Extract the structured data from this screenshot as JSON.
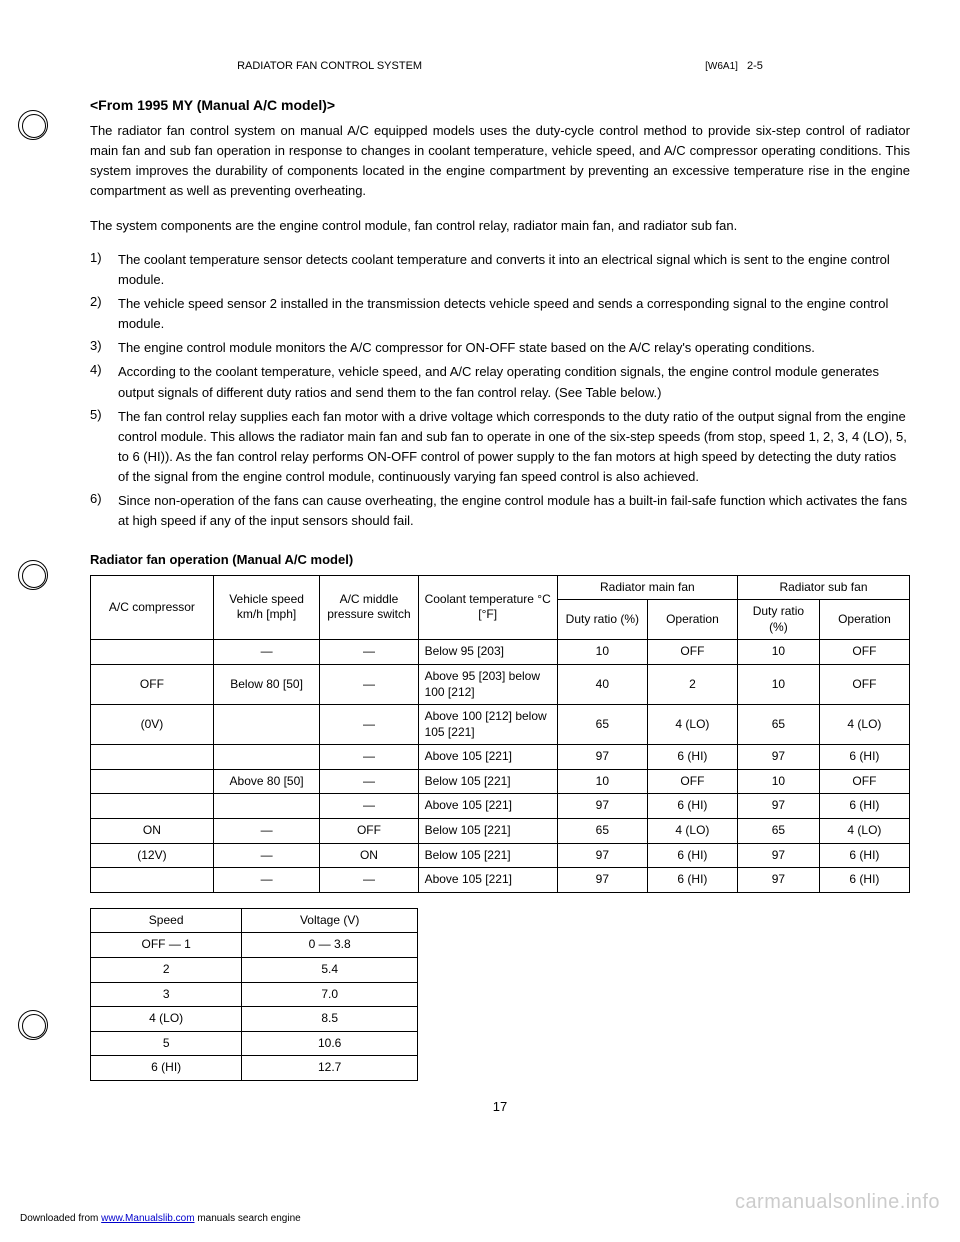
{
  "header": {
    "title": "RADIATOR FAN CONTROL SYSTEM",
    "ref": "[W6A1]",
    "code": "2-5"
  },
  "section": {
    "heading": "<From 1995 MY (Manual A/C model)>",
    "p1": "The radiator fan control system on manual A/C equipped models uses the duty-cycle control method to provide six-step control of radiator main fan and sub fan operation in response to changes in coolant temperature, vehicle speed, and A/C compressor operating conditions. This system improves the durability of components located in the engine compartment by preventing an excessive temperature rise in the engine compartment as well as preventing overheating.",
    "p2": "The system components are the engine control module, fan control relay, radiator main fan, and radiator sub fan."
  },
  "numbered": [
    {
      "n": "1)",
      "t": "The coolant temperature sensor detects coolant temperature and converts it into an electrical signal which is sent to the engine control module."
    },
    {
      "n": "2)",
      "t": "The vehicle speed sensor 2 installed in the transmission detects vehicle speed and sends a corresponding signal to the engine control module."
    },
    {
      "n": "3)",
      "t": "The engine control module monitors the A/C compressor for ON-OFF state based on the A/C relay's operating conditions."
    },
    {
      "n": "4)",
      "t": "According to the coolant temperature, vehicle speed, and A/C relay operating condition signals, the engine control module generates output signals of different duty ratios and send them to the fan control relay. (See Table below.)"
    },
    {
      "n": "5)",
      "t": "The fan control relay supplies each fan motor with a drive voltage which corresponds to the duty ratio of the output signal from the engine control module. This allows the radiator main fan and sub fan to operate in one of the six-step speeds (from stop, speed 1, 2, 3, 4 (LO), 5, to 6 (HI)). As the fan control relay performs ON-OFF control of power supply to the fan motors at high speed by detecting the duty ratios of the signal from the engine control module, continuously varying fan speed control is also achieved."
    },
    {
      "n": "6)",
      "t": "Since non-operation of the fans can cause overheating, the engine control module has a built-in fail-safe function which activates the fans at high speed if any of the input sensors should fail."
    }
  ],
  "table": {
    "title": "Radiator fan operation (Manual A/C model)",
    "head": {
      "ac": "A/C compressor",
      "speed": "Vehicle speed km/h [mph]",
      "pressure": "A/C middle pressure switch",
      "coolant": "Coolant temperature °C [°F]",
      "main_group": "Radiator main fan",
      "sub_group": "Radiator sub fan",
      "duty": "Duty ratio (%)",
      "op": "Operation",
      "speed_col": "Speed",
      "voltage": "Voltage (V)"
    },
    "rows": [
      {
        "ac": "",
        "vs": "—",
        "ps": "—",
        "ct": "Below 95 [203]",
        "m_duty": "10",
        "m_op": "OFF",
        "s_duty": "10",
        "s_op": "OFF"
      },
      {
        "ac": "OFF",
        "vs": "Below 80 [50]",
        "ps": "—",
        "ct": "Above 95 [203] below 100 [212]",
        "m_duty": "40",
        "m_op": "2",
        "s_duty": "10",
        "s_op": "OFF"
      },
      {
        "ac": "(0V)",
        "vs": "",
        "ps": "—",
        "ct": "Above 100 [212] below 105 [221]",
        "m_duty": "65",
        "m_op": "4 (LO)",
        "s_duty": "65",
        "s_op": "4 (LO)"
      },
      {
        "ac": "",
        "vs": "",
        "ps": "—",
        "ct": "Above 105 [221]",
        "m_duty": "97",
        "m_op": "6 (HI)",
        "s_duty": "97",
        "s_op": "6 (HI)"
      },
      {
        "ac": "",
        "vs": "Above 80 [50]",
        "ps": "—",
        "ct": "Below 105 [221]",
        "m_duty": "10",
        "m_op": "OFF",
        "s_duty": "10",
        "s_op": "OFF"
      },
      {
        "ac": "",
        "vs": "",
        "ps": "—",
        "ct": "Above 105 [221]",
        "m_duty": "97",
        "m_op": "6 (HI)",
        "s_duty": "97",
        "s_op": "6 (HI)"
      },
      {
        "ac": "ON",
        "vs": "—",
        "ps": "OFF",
        "ct": "Below 105 [221]",
        "m_duty": "65",
        "m_op": "4 (LO)",
        "s_duty": "65",
        "s_op": "4 (LO)"
      },
      {
        "ac": "(12V)",
        "vs": "—",
        "ps": "ON",
        "ct": "Below 105 [221]",
        "m_duty": "97",
        "m_op": "6 (HI)",
        "s_duty": "97",
        "s_op": "6 (HI)"
      },
      {
        "ac": "",
        "vs": "—",
        "ps": "—",
        "ct": "Above 105 [221]",
        "m_duty": "97",
        "m_op": "6 (HI)",
        "s_duty": "97",
        "s_op": "6 (HI)"
      }
    ],
    "speed_voltage": {
      "head_speed": "Speed",
      "head_voltage": "Voltage (V)",
      "rows": [
        {
          "s": "OFF — 1",
          "v": "0 — 3.8"
        },
        {
          "s": "2",
          "v": "5.4"
        },
        {
          "s": "3",
          "v": "7.0"
        },
        {
          "s": "4 (LO)",
          "v": "8.5"
        },
        {
          "s": "5",
          "v": "10.6"
        },
        {
          "s": "6 (HI)",
          "v": "12.7"
        }
      ]
    }
  },
  "pagenum": "17",
  "footer": {
    "pre": "Downloaded from ",
    "link": "www.Manualslib.com",
    "post": " manuals search engine"
  },
  "watermark": "carmanualsonline.info"
}
